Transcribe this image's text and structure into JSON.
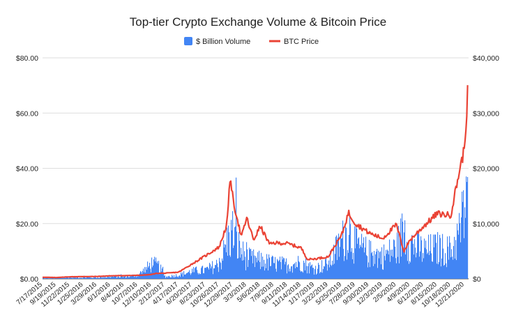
{
  "chart_data": {
    "type": "bar+line",
    "title": "Top-tier Crypto Exchange Volume & Bitcoin Price",
    "legend": {
      "placement": "top-center",
      "items": [
        {
          "label": "$ Billion Volume",
          "color": "#4285f4",
          "kind": "bar"
        },
        {
          "label": "BTC Price",
          "color": "#ea4335",
          "kind": "line"
        }
      ]
    },
    "left_axis": {
      "ticks": [
        "$0.00",
        "$20.00",
        "$40.00",
        "$60.00",
        "$80.00"
      ],
      "range": [
        0,
        80
      ]
    },
    "right_axis": {
      "ticks": [
        "$0",
        "$10,000",
        "$20,000",
        "$30,000",
        "$40,000"
      ],
      "range": [
        0,
        40000
      ]
    },
    "x_ticks": [
      "7/17/2015",
      "9/19/2015",
      "11/22/2015",
      "1/25/2016",
      "3/29/2016",
      "6/1/2016",
      "8/4/2016",
      "10/7/2016",
      "12/10/2016",
      "2/12/2017",
      "4/17/2017",
      "6/20/2017",
      "8/23/2017",
      "10/26/2017",
      "12/29/2017",
      "3/3/2018",
      "5/6/2018",
      "7/9/2018",
      "9/11/2018",
      "11/14/2018",
      "1/17/2019",
      "3/22/2019",
      "5/25/2019",
      "7/28/2019",
      "9/30/2019",
      "12/3/2019",
      "2/5/2020",
      "4/9/2020",
      "6/12/2020",
      "8/15/2020",
      "10/18/2020",
      "12/21/2020"
    ],
    "series": [
      {
        "name": "$ Billion Volume",
        "axis": "left",
        "type": "bar",
        "x": [
          "7/17/2015",
          "9/19/2015",
          "11/22/2015",
          "1/25/2016",
          "3/29/2016",
          "6/1/2016",
          "8/4/2016",
          "10/7/2016",
          "11/15/2016",
          "12/10/2016",
          "1/10/2017",
          "2/12/2017",
          "4/17/2017",
          "6/20/2017",
          "8/23/2017",
          "10/26/2017",
          "12/1/2017",
          "12/29/2017",
          "1/15/2018",
          "2/10/2018",
          "3/3/2018",
          "5/6/2018",
          "7/9/2018",
          "9/11/2018",
          "11/14/2018",
          "12/15/2018",
          "1/17/2019",
          "3/22/2019",
          "5/1/2019",
          "5/25/2019",
          "6/25/2019",
          "7/28/2019",
          "9/30/2019",
          "12/3/2019",
          "2/5/2020",
          "3/12/2020",
          "4/9/2020",
          "6/12/2020",
          "8/15/2020",
          "10/18/2020",
          "11/25/2020",
          "12/21/2020",
          "1/5/2021"
        ],
        "values": [
          0.3,
          0.3,
          0.5,
          0.5,
          0.5,
          0.8,
          0.8,
          1.5,
          4.0,
          6.0,
          5.0,
          0.8,
          1.5,
          3.0,
          3.5,
          6.0,
          15.0,
          19.0,
          14.0,
          10.0,
          8.0,
          7.0,
          6.0,
          5.5,
          6.5,
          5.0,
          4.0,
          6.0,
          12.0,
          15.0,
          20.0,
          13.0,
          10.0,
          9.0,
          12.0,
          20.0,
          14.0,
          11.0,
          12.0,
          11.0,
          18.0,
          28.0,
          45.0
        ]
      },
      {
        "name": "BTC Price",
        "axis": "right",
        "type": "line",
        "x": [
          "7/17/2015",
          "9/19/2015",
          "11/22/2015",
          "1/25/2016",
          "3/29/2016",
          "6/1/2016",
          "8/4/2016",
          "10/7/2016",
          "12/10/2016",
          "1/5/2017",
          "2/12/2017",
          "4/17/2017",
          "6/20/2017",
          "8/23/2017",
          "10/26/2017",
          "12/1/2017",
          "12/17/2017",
          "12/29/2017",
          "1/15/2018",
          "2/6/2018",
          "3/3/2018",
          "4/5/2018",
          "5/6/2018",
          "6/20/2018",
          "7/9/2018",
          "9/11/2018",
          "11/14/2018",
          "12/15/2018",
          "1/17/2019",
          "3/22/2019",
          "5/25/2019",
          "6/25/2019",
          "7/28/2019",
          "9/30/2019",
          "12/3/2019",
          "2/5/2020",
          "3/12/2020",
          "4/9/2020",
          "6/12/2020",
          "8/15/2020",
          "10/18/2020",
          "11/25/2020",
          "12/21/2020",
          "1/5/2021",
          "1/8/2021"
        ],
        "values": [
          280,
          230,
          360,
          400,
          420,
          540,
          580,
          620,
          770,
          1000,
          1000,
          1200,
          2700,
          4200,
          5800,
          10000,
          19000,
          14000,
          11500,
          7500,
          11000,
          7000,
          9500,
          6200,
          6500,
          6400,
          5600,
          3500,
          3600,
          4000,
          8000,
          12000,
          10000,
          8300,
          7300,
          9800,
          5000,
          7000,
          9500,
          11800,
          11500,
          19000,
          23500,
          33000,
          36000
        ]
      }
    ]
  }
}
